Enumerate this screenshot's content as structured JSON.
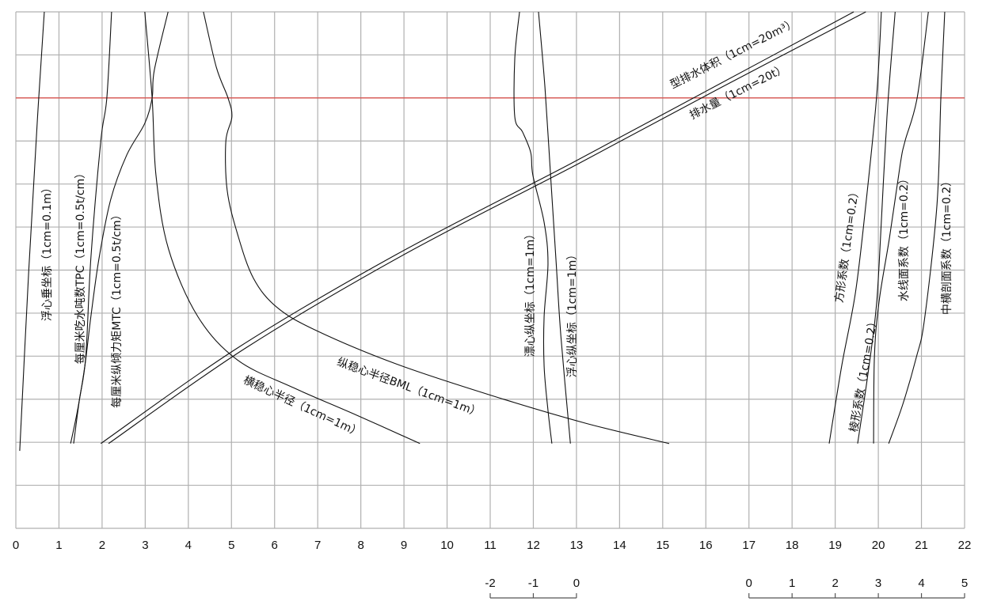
{
  "chart_data": {
    "type": "line",
    "grid": true,
    "xlim": [
      0,
      22
    ],
    "ylim": [
      0,
      12
    ],
    "x_ticks": [
      "0",
      "1",
      "2",
      "3",
      "4",
      "5",
      "6",
      "7",
      "8",
      "9",
      "10",
      "11",
      "12",
      "13",
      "14",
      "15",
      "16",
      "17",
      "18",
      "19",
      "20",
      "21",
      "22"
    ],
    "reference_line": {
      "y": 10,
      "color": "#d9534f"
    },
    "aux_scales": [
      {
        "ticks": [
          "-2",
          "-1",
          "0"
        ],
        "x_from": 11,
        "x_to": 13
      },
      {
        "ticks": [
          "0",
          "1",
          "2",
          "3",
          "4",
          "5"
        ],
        "x_from": 17,
        "x_to": 22
      }
    ],
    "series": [
      {
        "name": "浮心垂坐标（1cm=0.1m）",
        "points": [
          [
            0.09,
            1.8
          ],
          [
            0.3,
            6
          ],
          [
            0.5,
            9.5
          ],
          [
            0.66,
            12
          ]
        ]
      },
      {
        "name": "每厘米吃水吨数TPC（1cm=0.5t/cm）",
        "points": [
          [
            1.34,
            1.97
          ],
          [
            1.47,
            2.96
          ],
          [
            1.62,
            3.97
          ],
          [
            1.74,
            6.28
          ],
          [
            1.97,
            9.0
          ],
          [
            2.11,
            10.0
          ],
          [
            2.22,
            12
          ]
        ]
      },
      {
        "name": "每厘米纵倾力矩MTC（1cm=0.5t/cm）",
        "points": [
          [
            1.27,
            1.97
          ],
          [
            1.43,
            2.74
          ],
          [
            1.6,
            3.77
          ],
          [
            1.74,
            4.92
          ],
          [
            1.93,
            6.28
          ],
          [
            2.2,
            7.64
          ],
          [
            2.57,
            8.67
          ],
          [
            2.99,
            9.41
          ],
          [
            3.16,
            10.0
          ],
          [
            3.21,
            10.64
          ],
          [
            3.53,
            12
          ]
        ]
      },
      {
        "name": "横稳心半径（1cm=1m）",
        "points": [
          [
            2.99,
            12
          ],
          [
            3.16,
            10.0
          ],
          [
            3.25,
            8.2
          ],
          [
            3.54,
            6.49
          ],
          [
            4.22,
            4.92
          ],
          [
            5.14,
            3.91
          ],
          [
            6.43,
            3.27
          ],
          [
            7.9,
            2.63
          ],
          [
            9.37,
            1.97
          ]
        ]
      },
      {
        "name": "纵稳心半径BML（1cm=1m）",
        "points": [
          [
            4.35,
            12
          ],
          [
            4.65,
            10.71
          ],
          [
            4.92,
            10.0
          ],
          [
            5.01,
            9.56
          ],
          [
            4.87,
            9.0
          ],
          [
            4.9,
            7.86
          ],
          [
            5.14,
            6.84
          ],
          [
            5.51,
            5.81
          ],
          [
            6.06,
            5.13
          ],
          [
            6.98,
            4.59
          ],
          [
            8.82,
            3.82
          ],
          [
            11.02,
            3.09
          ],
          [
            13.22,
            2.44
          ],
          [
            15.15,
            1.97
          ]
        ]
      },
      {
        "name": "型排水体积（1cm=20m³）",
        "points": [
          [
            1.97,
            1.97
          ],
          [
            5.14,
            4.19
          ],
          [
            8.82,
            6.36
          ],
          [
            12.86,
            8.47
          ],
          [
            16.16,
            10.24
          ],
          [
            19.43,
            12
          ]
        ]
      },
      {
        "name": "排水量（1cm=20t）",
        "points": [
          [
            2.15,
            1.97
          ],
          [
            5.33,
            4.19
          ],
          [
            9.0,
            6.36
          ],
          [
            13.04,
            8.47
          ],
          [
            16.35,
            10.24
          ],
          [
            19.71,
            12
          ]
        ]
      },
      {
        "name": "漂心纵坐标（1cm=1m）",
        "points": [
          [
            11.68,
            12
          ],
          [
            11.57,
            10.92
          ],
          [
            11.57,
            9.56
          ],
          [
            11.75,
            9.21
          ],
          [
            11.94,
            8.73
          ],
          [
            11.99,
            8.2
          ],
          [
            12.25,
            7.11
          ],
          [
            12.34,
            6.16
          ],
          [
            12.25,
            4.92
          ],
          [
            12.25,
            3.77
          ],
          [
            12.34,
            2.74
          ],
          [
            12.43,
            1.97
          ]
        ]
      },
      {
        "name": "浮心纵坐标（1cm=1m）",
        "points": [
          [
            12.12,
            12
          ],
          [
            12.27,
            10.24
          ],
          [
            12.4,
            8.2
          ],
          [
            12.53,
            6.16
          ],
          [
            12.64,
            4.45
          ],
          [
            12.86,
            1.97
          ]
        ]
      },
      {
        "name": "方形系数（1cm=0.2）",
        "points": [
          [
            18.86,
            1.97
          ],
          [
            19.15,
            3.77
          ],
          [
            19.47,
            5.48
          ],
          [
            19.71,
            7.52
          ],
          [
            19.96,
            10.03
          ],
          [
            20.07,
            12
          ]
        ]
      },
      {
        "name": "棱形系数（1cm=0.2）",
        "points": [
          [
            19.52,
            1.97
          ],
          [
            19.74,
            3.45
          ],
          [
            19.93,
            4.92
          ],
          [
            20.02,
            6.16
          ],
          [
            20.2,
            9.56
          ],
          [
            20.39,
            12
          ]
        ]
      },
      {
        "name": "水线面系数（1cm=0.2）",
        "points": [
          [
            19.89,
            1.97
          ],
          [
            19.91,
            4.01
          ],
          [
            20.02,
            5.29
          ],
          [
            20.26,
            6.76
          ],
          [
            20.51,
            8.47
          ],
          [
            20.62,
            9.0
          ],
          [
            20.9,
            10.0
          ],
          [
            21.16,
            12
          ]
        ]
      },
      {
        "name": "中横剖面系数（1cm=0.2）",
        "points": [
          [
            20.24,
            1.97
          ],
          [
            20.57,
            2.89
          ],
          [
            20.88,
            3.97
          ],
          [
            21.07,
            4.85
          ],
          [
            21.36,
            7.52
          ],
          [
            21.45,
            10.0
          ],
          [
            21.54,
            12
          ]
        ]
      }
    ]
  }
}
